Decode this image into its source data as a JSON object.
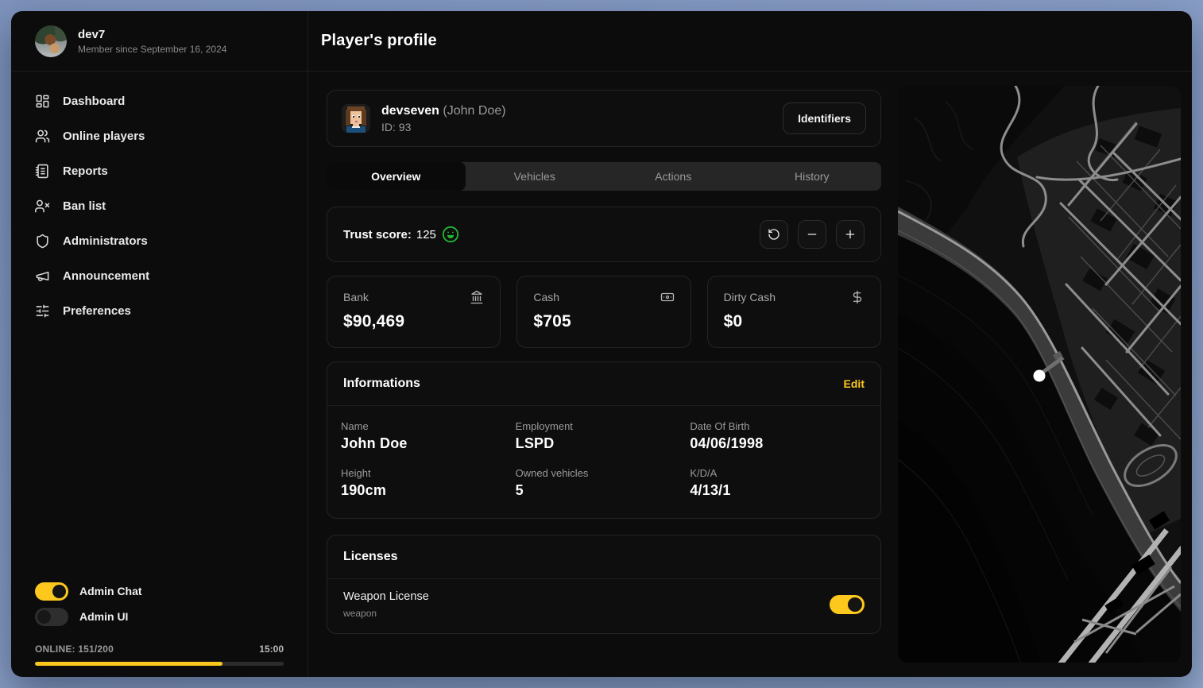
{
  "colors": {
    "accent": "#fcc81e",
    "trust_emoji_green": "#1fb834"
  },
  "sidebar": {
    "user": {
      "name": "dev7",
      "member_since": "Member since September 16, 2024"
    },
    "items": [
      {
        "label": "Dashboard",
        "icon": "dashboard-icon"
      },
      {
        "label": "Online players",
        "icon": "users-icon"
      },
      {
        "label": "Reports",
        "icon": "notebook-icon"
      },
      {
        "label": "Ban list",
        "icon": "user-x-icon"
      },
      {
        "label": "Administrators",
        "icon": "shield-icon"
      },
      {
        "label": "Announcement",
        "icon": "megaphone-icon"
      },
      {
        "label": "Preferences",
        "icon": "sliders-icon"
      }
    ],
    "toggles": [
      {
        "label": "Admin Chat",
        "on": true
      },
      {
        "label": "Admin UI",
        "on": false
      }
    ],
    "online": {
      "label": "ONLINE: 151/200",
      "time": "15:00",
      "progress_pct": 75.5
    }
  },
  "header": {
    "title": "Player's profile"
  },
  "profile": {
    "username": "devseven",
    "realname": "(John Doe)",
    "id_label": "ID: 93",
    "identifiers_button": "Identifiers"
  },
  "tabs": [
    {
      "label": "Overview",
      "active": true
    },
    {
      "label": "Vehicles",
      "active": false
    },
    {
      "label": "Actions",
      "active": false
    },
    {
      "label": "History",
      "active": false
    }
  ],
  "trust": {
    "label": "Trust score:",
    "value": "125",
    "emoji": "grinning-face-icon"
  },
  "money_cards": [
    {
      "label": "Bank",
      "value": "$90,469",
      "icon": "bank-icon"
    },
    {
      "label": "Cash",
      "value": "$705",
      "icon": "banknote-icon"
    },
    {
      "label": "Dirty Cash",
      "value": "$0",
      "icon": "dollar-icon"
    }
  ],
  "informations": {
    "title": "Informations",
    "edit_label": "Edit",
    "fields": [
      {
        "label": "Name",
        "value": "John Doe"
      },
      {
        "label": "Employment",
        "value": "LSPD"
      },
      {
        "label": "Date Of Birth",
        "value": "04/06/1998"
      },
      {
        "label": "Height",
        "value": "190cm"
      },
      {
        "label": "Owned vehicles",
        "value": "5"
      },
      {
        "label": "K/D/A",
        "value": "4/13/1"
      }
    ]
  },
  "licenses": {
    "title": "Licenses",
    "items": [
      {
        "name": "Weapon License",
        "key": "weapon",
        "enabled": true
      }
    ]
  },
  "map": {
    "marker": "player-position-marker"
  }
}
